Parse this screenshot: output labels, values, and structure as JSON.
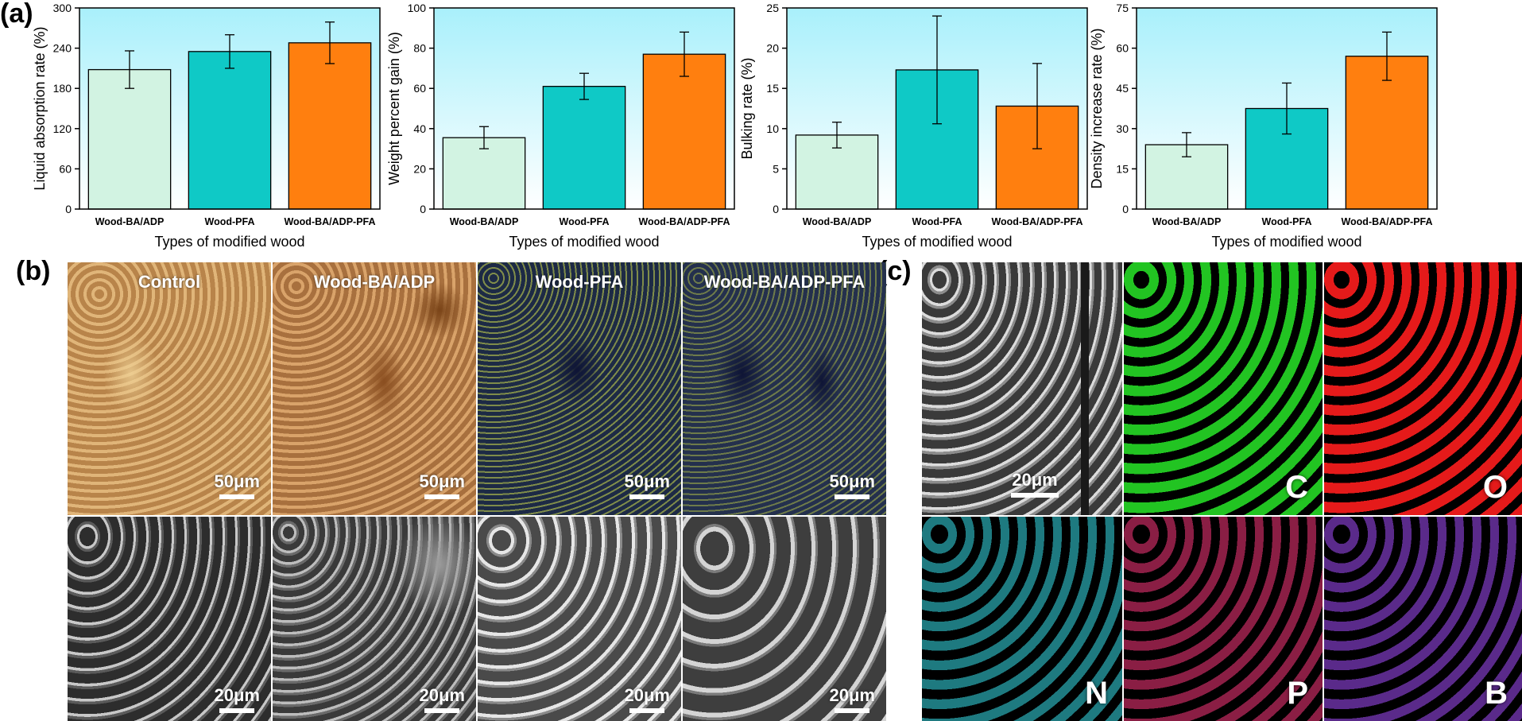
{
  "panels": {
    "a": "(a)",
    "b": "(b)",
    "c": "(c)"
  },
  "chart_data": [
    {
      "type": "bar",
      "categories": [
        "Wood-BA/ADP",
        "Wood-PFA",
        "Wood-BA/ADP-PFA"
      ],
      "values": [
        208,
        235,
        248
      ],
      "errors": [
        28,
        25,
        31
      ],
      "xlabel": "Types of modified wood",
      "ylabel": "Liquid absorption rate (%)",
      "ylim": [
        0,
        300
      ],
      "yticks": [
        0,
        60,
        120,
        180,
        240,
        300
      ],
      "colors": [
        "#d2f3e2",
        "#0fc9c6",
        "#ff7f0f"
      ]
    },
    {
      "type": "bar",
      "categories": [
        "Wood-BA/ADP",
        "Wood-PFA",
        "Wood-BA/ADP-PFA"
      ],
      "values": [
        35.5,
        61,
        77
      ],
      "errors": [
        5.5,
        6.5,
        11
      ],
      "xlabel": "Types of modified wood",
      "ylabel": "Weight percent gain (%)",
      "ylim": [
        0,
        100
      ],
      "yticks": [
        0,
        20,
        40,
        60,
        80,
        100
      ],
      "colors": [
        "#d2f3e2",
        "#0fc9c6",
        "#ff7f0f"
      ]
    },
    {
      "type": "bar",
      "categories": [
        "Wood-BA/ADP",
        "Wood-PFA",
        "Wood-BA/ADP-PFA"
      ],
      "values": [
        9.2,
        17.3,
        12.8
      ],
      "errors": [
        1.6,
        6.7,
        5.3
      ],
      "xlabel": "Types of modified wood",
      "ylabel": "Bulking rate (%)",
      "ylim": [
        0,
        25
      ],
      "yticks": [
        0,
        5,
        10,
        15,
        20,
        25
      ],
      "colors": [
        "#d2f3e2",
        "#0fc9c6",
        "#ff7f0f"
      ]
    },
    {
      "type": "bar",
      "categories": [
        "Wood-BA/ADP",
        "Wood-PFA",
        "Wood-BA/ADP-PFA"
      ],
      "values": [
        24,
        37.5,
        57
      ],
      "errors": [
        4.5,
        9.5,
        9
      ],
      "xlabel": "Types of modified wood",
      "ylabel": "Density increase rate (%)",
      "ylim": [
        0,
        75
      ],
      "yticks": [
        0,
        15,
        30,
        45,
        60,
        75
      ],
      "colors": [
        "#d2f3e2",
        "#0fc9c6",
        "#ff7f0f"
      ]
    }
  ],
  "micrographs_b": {
    "titles": [
      "Control",
      "Wood-BA/ADP",
      "Wood-PFA",
      "Wood-BA/ADP-PFA"
    ],
    "scale_top": "50μm",
    "scale_bottom": "20μm"
  },
  "mapping_c": {
    "scale": "20μm",
    "elements": [
      "C",
      "O",
      "N",
      "P",
      "B"
    ]
  }
}
